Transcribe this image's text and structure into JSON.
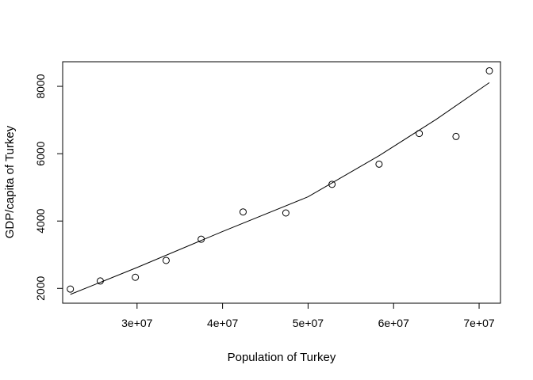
{
  "chart_data": {
    "type": "scatter",
    "title": "",
    "xlabel": "Population of Turkey",
    "ylabel": "GDP/capita of Turkey",
    "xlim": [
      21300000,
      72500000
    ],
    "ylim": [
      1560,
      8730
    ],
    "x_ticks": [
      30000000,
      40000000,
      50000000,
      60000000,
      70000000
    ],
    "x_tick_labels": [
      "3e+07",
      "4e+07",
      "5e+07",
      "6e+07",
      "7e+07"
    ],
    "y_ticks": [
      2000,
      4000,
      6000,
      8000
    ],
    "y_tick_labels": [
      "2000",
      "4000",
      "6000",
      "8000"
    ],
    "points": [
      {
        "x": 22200000,
        "y": 1980
      },
      {
        "x": 25700000,
        "y": 2220
      },
      {
        "x": 29800000,
        "y": 2330
      },
      {
        "x": 33400000,
        "y": 2830
      },
      {
        "x": 37500000,
        "y": 3460
      },
      {
        "x": 42400000,
        "y": 4270
      },
      {
        "x": 47400000,
        "y": 4240
      },
      {
        "x": 52800000,
        "y": 5090
      },
      {
        "x": 58300000,
        "y": 5690
      },
      {
        "x": 63000000,
        "y": 6600
      },
      {
        "x": 67300000,
        "y": 6510
      },
      {
        "x": 71200000,
        "y": 8460
      }
    ],
    "fit_line": [
      {
        "x": 22200000,
        "y": 1820
      },
      {
        "x": 30000000,
        "y": 2620
      },
      {
        "x": 40000000,
        "y": 3690
      },
      {
        "x": 50000000,
        "y": 4720
      },
      {
        "x": 58300000,
        "y": 5940
      },
      {
        "x": 65000000,
        "y": 7020
      },
      {
        "x": 71200000,
        "y": 8110
      }
    ],
    "grid": false,
    "legend": "none"
  }
}
